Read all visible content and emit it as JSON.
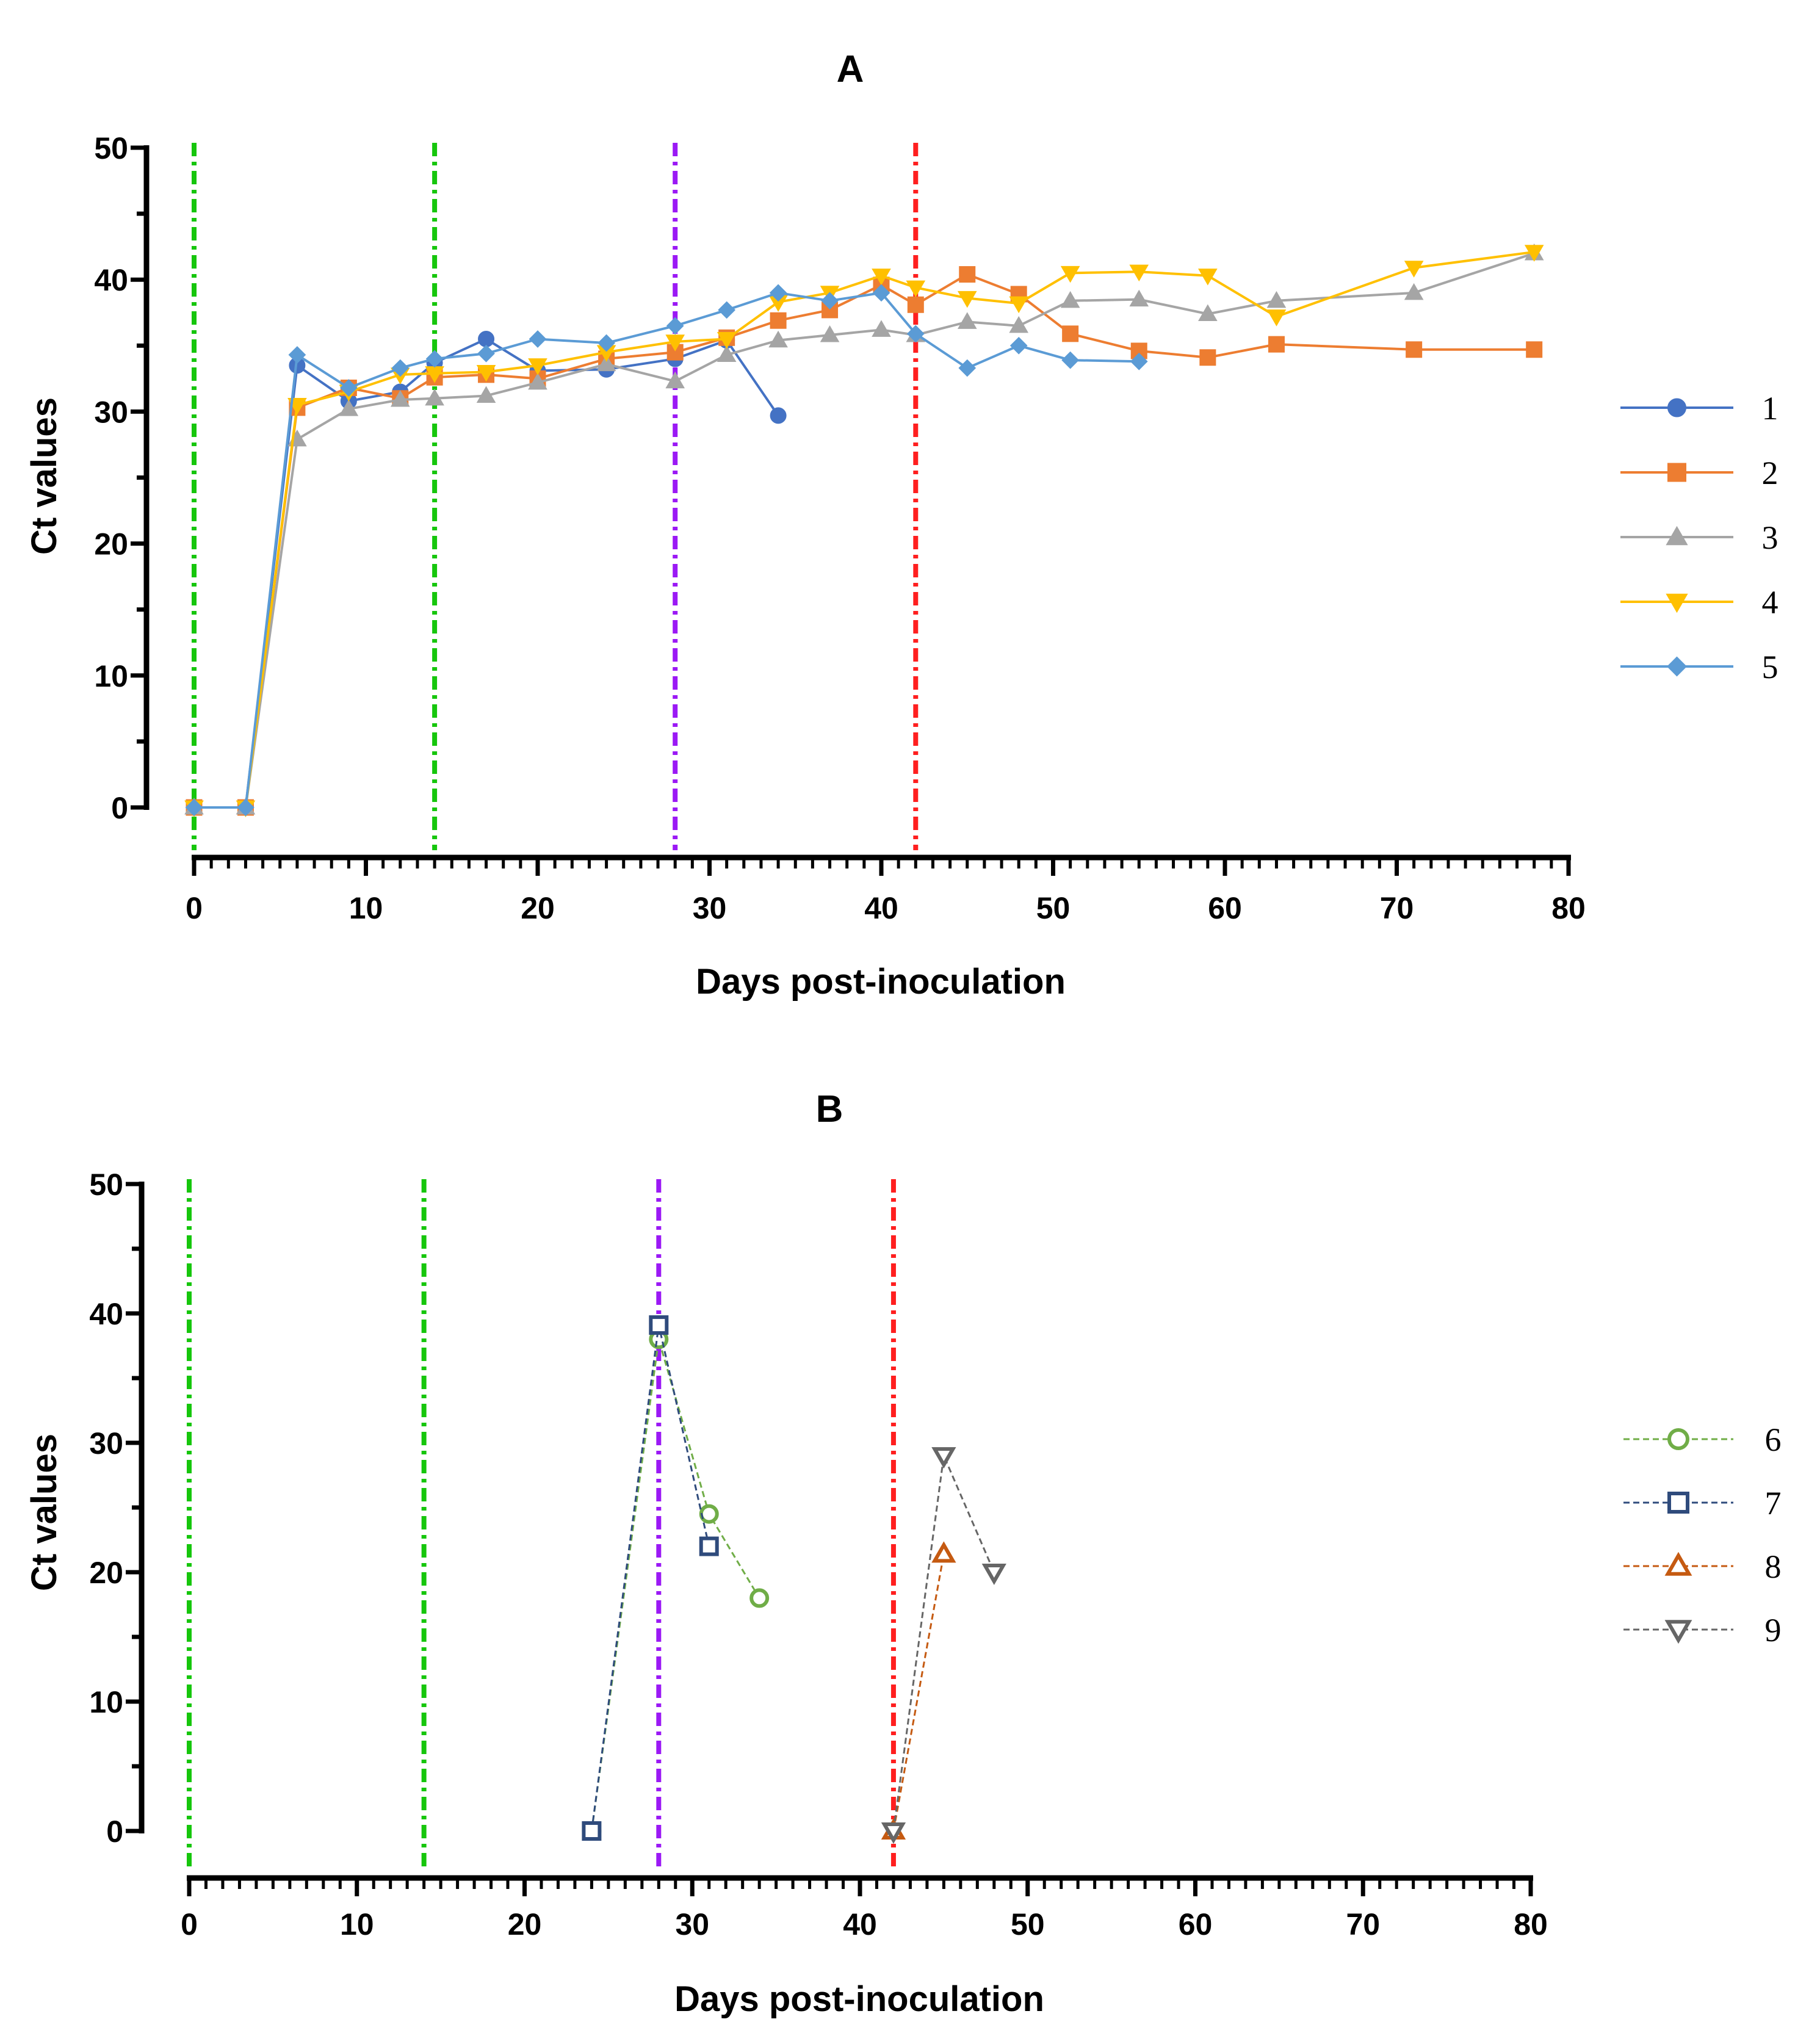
{
  "chart_data": [
    {
      "panel": "A",
      "type": "line",
      "title": "A",
      "xlabel": "Days post-inoculation",
      "ylabel": "Ct values",
      "xlim": [
        0,
        80
      ],
      "ylim": [
        0,
        50
      ],
      "x_ticks": [
        "0",
        "10",
        "20",
        "30",
        "40",
        "50",
        "60",
        "70",
        "80"
      ],
      "y_ticks": [
        "0",
        "10",
        "20",
        "30",
        "40",
        "50"
      ],
      "grid": false,
      "legend_position": "right",
      "vlines": [
        {
          "x": 0,
          "color": "#16c60c"
        },
        {
          "x": 14,
          "color": "#16c60c"
        },
        {
          "x": 28,
          "color": "#9b19f5"
        },
        {
          "x": 42,
          "color": "#ff1f1f"
        }
      ],
      "series": [
        {
          "name": "1",
          "color": "#4472c4",
          "marker": "circle",
          "dashed": false,
          "points": [
            [
              0,
              0
            ],
            [
              3,
              0
            ],
            [
              6,
              33.5
            ],
            [
              9,
              30.8
            ],
            [
              12,
              31.5
            ],
            [
              14,
              33.7
            ],
            [
              17,
              35.5
            ],
            [
              20,
              33.1
            ],
            [
              24,
              33.2
            ],
            [
              28,
              34.0
            ],
            [
              31,
              35.4
            ],
            [
              34,
              29.7
            ]
          ]
        },
        {
          "name": "2",
          "color": "#ed7d31",
          "marker": "square",
          "dashed": false,
          "points": [
            [
              0,
              0
            ],
            [
              3,
              0
            ],
            [
              6,
              30.3
            ],
            [
              9,
              31.8
            ],
            [
              12,
              31.0
            ],
            [
              14,
              32.6
            ],
            [
              17,
              32.8
            ],
            [
              20,
              32.5
            ],
            [
              24,
              34.0
            ],
            [
              28,
              34.5
            ],
            [
              31,
              35.6
            ],
            [
              34,
              36.9
            ],
            [
              37,
              37.7
            ],
            [
              40,
              39.6
            ],
            [
              42,
              38.1
            ],
            [
              45,
              40.4
            ],
            [
              48,
              38.9
            ],
            [
              51,
              35.9
            ],
            [
              55,
              34.6
            ],
            [
              59,
              34.1
            ],
            [
              63,
              35.1
            ],
            [
              71,
              34.7
            ],
            [
              78,
              34.7
            ]
          ]
        },
        {
          "name": "3",
          "color": "#a5a5a5",
          "marker": "triangle-up",
          "dashed": false,
          "points": [
            [
              0,
              0
            ],
            [
              3,
              0
            ],
            [
              6,
              27.9
            ],
            [
              9,
              30.2
            ],
            [
              12,
              30.9
            ],
            [
              14,
              31.0
            ],
            [
              17,
              31.2
            ],
            [
              20,
              32.2
            ],
            [
              24,
              33.6
            ],
            [
              28,
              32.3
            ],
            [
              31,
              34.3
            ],
            [
              34,
              35.4
            ],
            [
              37,
              35.8
            ],
            [
              40,
              36.2
            ],
            [
              42,
              35.8
            ],
            [
              45,
              36.8
            ],
            [
              48,
              36.5
            ],
            [
              51,
              38.4
            ],
            [
              55,
              38.5
            ],
            [
              59,
              37.4
            ],
            [
              63,
              38.4
            ],
            [
              71,
              39.0
            ],
            [
              78,
              42.0
            ]
          ]
        },
        {
          "name": "4",
          "color": "#ffc000",
          "marker": "triangle-down",
          "dashed": false,
          "points": [
            [
              0,
              0
            ],
            [
              3,
              0
            ],
            [
              6,
              30.5
            ],
            [
              9,
              31.5
            ],
            [
              12,
              32.8
            ],
            [
              14,
              32.9
            ],
            [
              17,
              33.0
            ],
            [
              20,
              33.5
            ],
            [
              24,
              34.5
            ],
            [
              28,
              35.3
            ],
            [
              31,
              35.5
            ],
            [
              34,
              38.3
            ],
            [
              37,
              39.0
            ],
            [
              40,
              40.3
            ],
            [
              42,
              39.4
            ],
            [
              45,
              38.6
            ],
            [
              48,
              38.2
            ],
            [
              51,
              40.5
            ],
            [
              55,
              40.6
            ],
            [
              59,
              40.3
            ],
            [
              63,
              37.2
            ],
            [
              71,
              40.9
            ],
            [
              78,
              42.1
            ]
          ]
        },
        {
          "name": "5",
          "color": "#5b9bd5",
          "marker": "diamond",
          "dashed": false,
          "points": [
            [
              0,
              0
            ],
            [
              3,
              0
            ],
            [
              6,
              34.3
            ],
            [
              9,
              31.8
            ],
            [
              12,
              33.3
            ],
            [
              14,
              34.0
            ],
            [
              17,
              34.4
            ],
            [
              20,
              35.5
            ],
            [
              24,
              35.2
            ],
            [
              28,
              36.5
            ],
            [
              31,
              37.7
            ],
            [
              34,
              39.0
            ],
            [
              37,
              38.4
            ],
            [
              40,
              39.0
            ],
            [
              42,
              35.9
            ],
            [
              45,
              33.3
            ],
            [
              48,
              35.0
            ],
            [
              51,
              33.9
            ],
            [
              55,
              33.8
            ]
          ]
        }
      ]
    },
    {
      "panel": "B",
      "type": "line",
      "title": "B",
      "xlabel": "Days post-inoculation",
      "ylabel": "Ct values",
      "xlim": [
        0,
        80
      ],
      "ylim": [
        0,
        50
      ],
      "x_ticks": [
        "0",
        "10",
        "20",
        "30",
        "40",
        "50",
        "60",
        "70",
        "80"
      ],
      "y_ticks": [
        "0",
        "10",
        "20",
        "30",
        "40",
        "50"
      ],
      "grid": false,
      "legend_position": "right",
      "vlines": [
        {
          "x": 0,
          "color": "#16c60c"
        },
        {
          "x": 14,
          "color": "#16c60c"
        },
        {
          "x": 28,
          "color": "#9b19f5"
        },
        {
          "x": 42,
          "color": "#ff1f1f"
        }
      ],
      "series": [
        {
          "name": "6",
          "color": "#70ad47",
          "marker": "open-circle",
          "dashed": true,
          "points": [
            [
              24,
              0
            ],
            [
              28,
              38.0
            ],
            [
              31,
              24.5
            ],
            [
              34,
              18.0
            ]
          ]
        },
        {
          "name": "7",
          "color": "#2f4b7c",
          "marker": "open-square",
          "dashed": true,
          "points": [
            [
              24,
              0
            ],
            [
              28,
              39.1
            ],
            [
              31,
              22.0
            ]
          ]
        },
        {
          "name": "8",
          "color": "#c55a11",
          "marker": "open-triangle-up",
          "dashed": true,
          "points": [
            [
              42,
              0
            ],
            [
              45,
              21.4
            ]
          ]
        },
        {
          "name": "9",
          "color": "#666666",
          "marker": "open-triangle-down",
          "dashed": true,
          "points": [
            [
              42,
              0
            ],
            [
              45,
              29.0
            ],
            [
              48,
              20.0
            ]
          ]
        }
      ]
    }
  ]
}
